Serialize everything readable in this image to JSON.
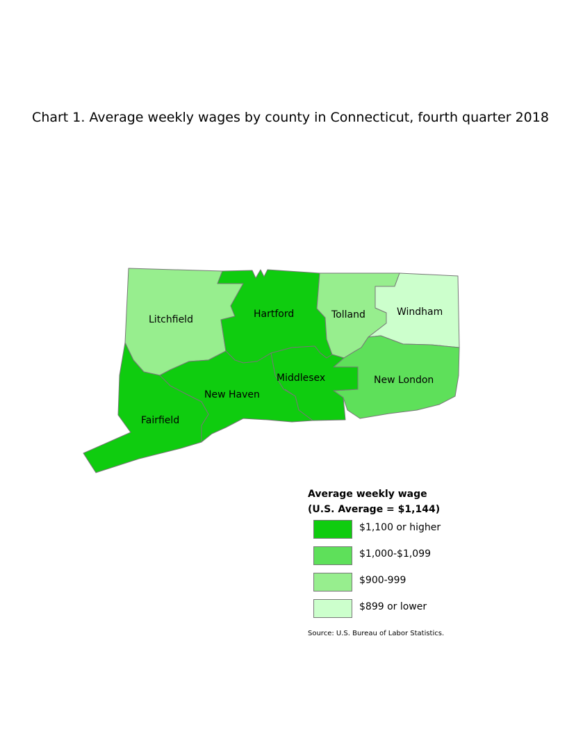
{
  "title": "Chart 1. Average weekly wages by county in Connecticut, fourth quarter 2018",
  "map": {
    "counties": [
      {
        "name": "Litchfield",
        "wage_class": "$900-999",
        "color": "#97ee8e"
      },
      {
        "name": "Hartford",
        "wage_class": "$1,100 or higher",
        "color": "#0fcc0f"
      },
      {
        "name": "Tolland",
        "wage_class": "$900-999",
        "color": "#97ee8e"
      },
      {
        "name": "Windham",
        "wage_class": "$899 or lower",
        "color": "#ccffcc"
      },
      {
        "name": "Fairfield",
        "wage_class": "$1,100 or higher",
        "color": "#0fcc0f"
      },
      {
        "name": "New Haven",
        "wage_class": "$1,100 or higher",
        "color": "#0fcc0f"
      },
      {
        "name": "Middlesex",
        "wage_class": "$1,100 or higher",
        "color": "#0fcc0f"
      },
      {
        "name": "New London",
        "wage_class": "$1,000-$1,099",
        "color": "#5ee05a"
      }
    ]
  },
  "legend": {
    "title_line1": "Average weekly wage",
    "title_line2": "(U.S. Average = $1,144)",
    "items": [
      {
        "label": "$1,100 or higher",
        "color": "#0fcc0f"
      },
      {
        "label": "$1,000-$1,099",
        "color": "#5ee05a"
      },
      {
        "label": "$900-999",
        "color": "#97ee8e"
      },
      {
        "label": "$899 or lower",
        "color": "#ccffcc"
      }
    ]
  },
  "source": "Source: U.S. Bureau of Labor Statistics."
}
